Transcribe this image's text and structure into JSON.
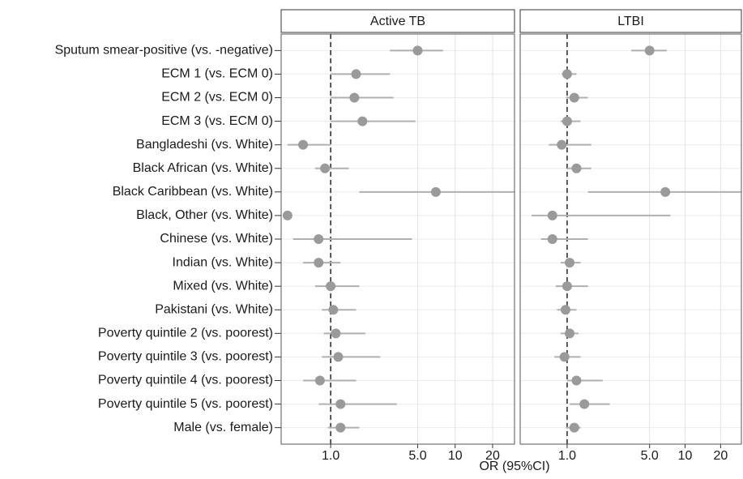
{
  "chart_data": {
    "type": "forest",
    "xlabel": "OR (95%CI)",
    "categories": [
      "Sputum smear-positive (vs. -negative)",
      "ECM 1 (vs. ECM 0)",
      "ECM 2 (vs. ECM 0)",
      "ECM 3 (vs. ECM 0)",
      "Bangladeshi (vs. White)",
      "Black African (vs. White)",
      "Black Caribbean (vs. White)",
      "Black, Other (vs. White)",
      "Chinese (vs. White)",
      "Indian (vs. White)",
      "Mixed (vs. White)",
      "Pakistani (vs. White)",
      "Poverty quintile 2 (vs. poorest)",
      "Poverty quintile 3 (vs. poorest)",
      "Poverty quintile 4 (vs. poorest)",
      "Poverty quintile 5 (vs. poorest)",
      "Male (vs. female)"
    ],
    "xlim": [
      0.4,
      30
    ],
    "log_x": true,
    "grid": true,
    "reference": 1,
    "color": "#9a9a9a",
    "xticks": [
      {
        "value": 1,
        "label": "1.0"
      },
      {
        "value": 5,
        "label": "5.0"
      },
      10,
      20
    ],
    "panels": [
      {
        "title": "Active TB",
        "values": [
          5.0,
          1.6,
          1.55,
          1.8,
          0.6,
          0.9,
          7.0,
          0.45,
          0.8,
          0.8,
          1.0,
          1.05,
          1.1,
          1.15,
          0.82,
          1.2,
          1.2
        ],
        "lower": [
          3.0,
          1.0,
          1.0,
          1.0,
          0.45,
          0.75,
          1.7,
          null,
          0.5,
          0.6,
          0.75,
          0.85,
          0.88,
          0.85,
          0.6,
          0.8,
          0.95
        ],
        "upper": [
          8.0,
          3.0,
          3.2,
          4.8,
          1.0,
          1.4,
          30,
          null,
          4.5,
          1.2,
          1.7,
          1.6,
          1.9,
          2.5,
          1.6,
          3.4,
          1.7
        ]
      },
      {
        "title": "LTBI",
        "values": [
          5.0,
          1.0,
          1.15,
          1.0,
          0.9,
          1.2,
          6.8,
          0.75,
          0.75,
          1.05,
          1.0,
          0.97,
          1.05,
          0.95,
          1.2,
          1.4,
          1.15
        ],
        "lower": [
          3.5,
          0.9,
          0.98,
          0.88,
          0.7,
          1.0,
          1.5,
          0.5,
          0.6,
          0.88,
          0.8,
          0.82,
          0.88,
          0.78,
          1.0,
          1.05,
          0.98
        ],
        "upper": [
          7.0,
          1.2,
          1.5,
          1.3,
          1.6,
          1.6,
          30,
          7.5,
          1.5,
          1.3,
          1.5,
          1.2,
          1.25,
          1.3,
          2.0,
          2.3,
          1.3
        ]
      }
    ]
  }
}
